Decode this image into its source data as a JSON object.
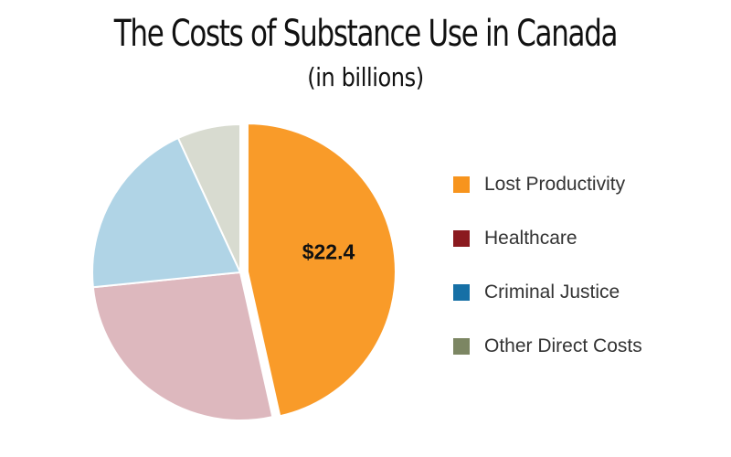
{
  "chart_data": {
    "type": "pie",
    "title": "The Costs of Substance Use in Canada",
    "subtitle": "(in billions)",
    "slices": [
      {
        "name": "Lost Productivity",
        "value": 46.5,
        "label": "$22.4",
        "color": "#F99B29",
        "exploded": true
      },
      {
        "name": "Healthcare",
        "value": 26.9,
        "label": "",
        "color": "#DDB8BE",
        "exploded": false
      },
      {
        "name": "Criminal Justice",
        "value": 19.7,
        "label": "",
        "color": "#B0D4E6",
        "exploded": false
      },
      {
        "name": "Other Direct Costs",
        "value": 6.9,
        "label": "",
        "color": "#D8DBD0",
        "exploded": false
      }
    ],
    "legend": {
      "placement": "right",
      "entries": [
        {
          "name": "Lost Productivity",
          "color": "#F7941D"
        },
        {
          "name": "Healthcare",
          "color": "#8B1A1F"
        },
        {
          "name": "Criminal Justice",
          "color": "#1670A6"
        },
        {
          "name": "Other Direct Costs",
          "color": "#7C8663"
        }
      ]
    }
  }
}
